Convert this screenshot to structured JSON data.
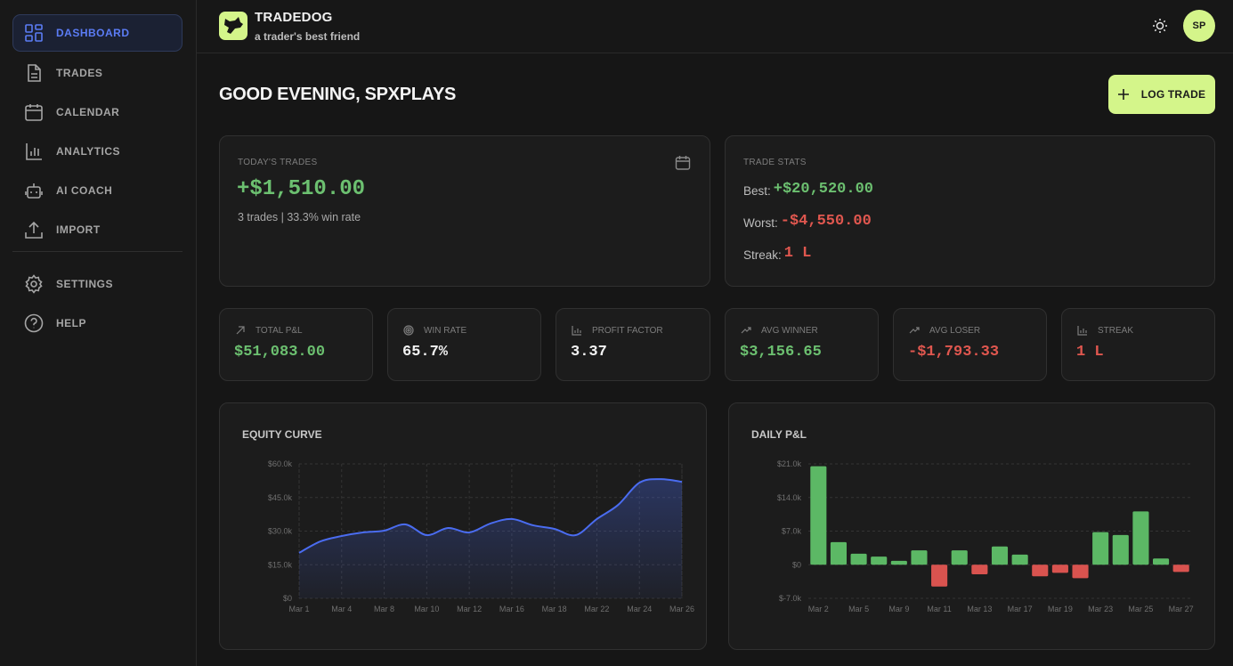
{
  "sidebar": {
    "nav": [
      "DASHBOARD",
      "TRADES",
      "CALENDAR",
      "ANALYTICS",
      "AI COACH",
      "IMPORT"
    ],
    "secondary": [
      "SETTINGS",
      "HELP"
    ]
  },
  "header": {
    "brand": "TRADEDOG",
    "tagline": "a trader's best friend",
    "avatar": "SP"
  },
  "greeting": "GOOD EVENING, SPXPLAYS",
  "log_trade": "LOG TRADE",
  "today": {
    "label": "TODAY'S TRADES",
    "pnl": "+$1,510.00",
    "summary": "3 trades | 33.3% win rate"
  },
  "trade_stats": {
    "label": "TRADE STATS",
    "rows": [
      {
        "label": "Best:",
        "value": "+$20,520.00",
        "color": "#6cc070"
      },
      {
        "label": "Worst:",
        "value": "-$4,550.00",
        "color": "#e0574f"
      },
      {
        "label": "Streak:",
        "value": "1 L",
        "color": "#e0574f"
      }
    ]
  },
  "metrics": [
    {
      "label": "TOTAL P&L",
      "value": "$51,083.00",
      "color": "#6cc070"
    },
    {
      "label": "WIN RATE",
      "value": "65.7%",
      "color": "#f2f2f2"
    },
    {
      "label": "PROFIT FACTOR",
      "value": "3.37",
      "color": "#f2f2f2"
    },
    {
      "label": "AVG WINNER",
      "value": "$3,156.65",
      "color": "#6cc070"
    },
    {
      "label": "AVG LOSER",
      "value": "-$1,793.33",
      "color": "#e0574f"
    },
    {
      "label": "STREAK",
      "value": "1 L",
      "color": "#e0574f"
    }
  ],
  "chart_data": [
    {
      "type": "line",
      "title": "EQUITY CURVE",
      "categories": [
        "Mar 1",
        null,
        "Mar 4",
        null,
        "Mar 8",
        null,
        "Mar 10",
        null,
        "Mar 12",
        null,
        "Mar 16",
        null,
        "Mar 18",
        null,
        "Mar 22",
        null,
        "Mar 24",
        null,
        "Mar 26"
      ],
      "series": [
        {
          "name": "Equity",
          "color": "#4a6cf0",
          "values": [
            20300,
            25400,
            27800,
            29400,
            30200,
            33000,
            28200,
            31400,
            29400,
            33400,
            35400,
            32600,
            31000,
            28200,
            35400,
            41700,
            51600,
            53200,
            52000
          ]
        }
      ],
      "ylim": [
        0,
        60000
      ],
      "yticks": [
        {
          "value": 0,
          "label": "$0"
        },
        {
          "value": 15000,
          "label": "$15.0k"
        },
        {
          "value": 30000,
          "label": "$30.0k"
        },
        {
          "value": 45000,
          "label": "$45.0k"
        },
        {
          "value": 60000,
          "label": "$60.0k"
        }
      ],
      "grid": "both"
    },
    {
      "type": "bar",
      "title": "DAILY P&L",
      "categories": [
        "Mar 2",
        null,
        "Mar 5",
        null,
        "Mar 9",
        null,
        "Mar 11",
        null,
        "Mar 13",
        null,
        "Mar 17",
        null,
        "Mar 19",
        null,
        "Mar 23",
        null,
        "Mar 25",
        null,
        "Mar 27"
      ],
      "values": [
        20520,
        4700,
        2300,
        1700,
        800,
        3000,
        -4550,
        3000,
        -2000,
        3800,
        2100,
        -2400,
        -1700,
        -2800,
        6800,
        6200,
        11100,
        1300,
        -1500
      ],
      "colors": {
        "positive": "#5cb865",
        "negative": "#d9534f"
      },
      "ylim": [
        -7000,
        21000
      ],
      "yticks": [
        {
          "value": -7000,
          "label": "$-7.0k"
        },
        {
          "value": 0,
          "label": "$0"
        },
        {
          "value": 7000,
          "label": "$7.0k"
        },
        {
          "value": 14000,
          "label": "$14.0k"
        },
        {
          "value": 21000,
          "label": "$21.0k"
        }
      ],
      "grid": "y"
    }
  ]
}
